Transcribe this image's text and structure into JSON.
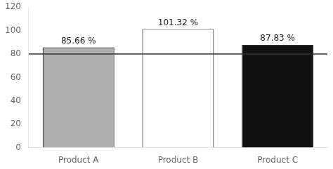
{
  "chart_data": {
    "type": "bar",
    "categories": [
      "Product A",
      "Product B",
      "Product C"
    ],
    "values": [
      85.66,
      101.32,
      87.83
    ],
    "value_labels": [
      "85.66 %",
      "101.32 %",
      "87.83 %"
    ],
    "data_labels": true,
    "colors": [
      "#b0b0b0",
      "#ffffff",
      "#111111"
    ],
    "edge_color": "#333333",
    "reference_line": {
      "y": 80,
      "color": "#333333"
    },
    "ylim": [
      0,
      120
    ],
    "yticks": [
      0,
      20,
      40,
      60,
      80,
      100,
      120
    ],
    "grid": false
  }
}
